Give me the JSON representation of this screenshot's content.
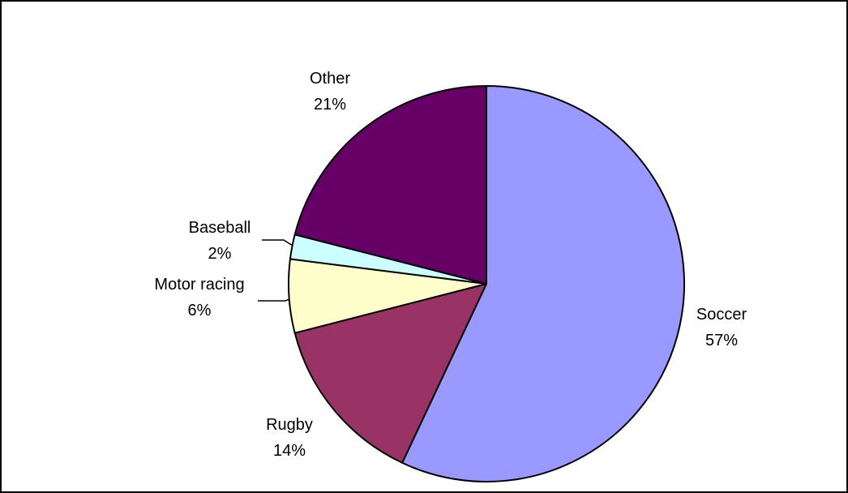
{
  "chart_data": {
    "type": "pie",
    "categories": [
      "Soccer",
      "Rugby",
      "Motor racing",
      "Baseball",
      "Other"
    ],
    "values": [
      57,
      14,
      6,
      2,
      21
    ],
    "value_labels": [
      "57%",
      "14%",
      "6%",
      "2%",
      "21%"
    ],
    "colors": [
      "#9999ff",
      "#993366",
      "#ffffcc",
      "#ccffff",
      "#660066"
    ],
    "start_angle_deg": 0,
    "direction": "clockwise",
    "title": "",
    "legend": false,
    "border_color": "#000000"
  }
}
